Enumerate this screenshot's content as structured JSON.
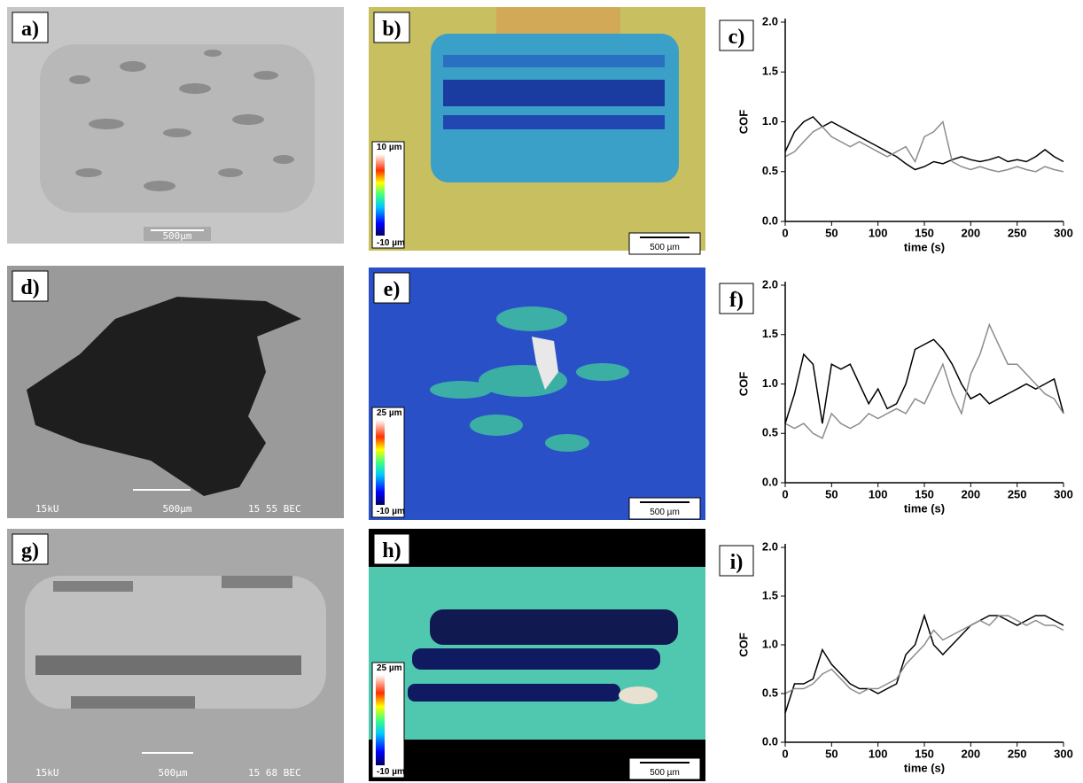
{
  "images": {
    "a": {
      "label": "a)",
      "scale_bar": "500µm"
    },
    "b": {
      "label": "b)",
      "scale_bar": "500 µm",
      "colorbar_max": "10 µm",
      "colorbar_min": "-10 µm"
    },
    "d": {
      "label": "d)",
      "scale_bar": "500µm",
      "info_left": "15kU",
      "info_right": "15 55 BEC"
    },
    "e": {
      "label": "e)",
      "scale_bar": "500 µm",
      "colorbar_max": "25 µm",
      "colorbar_min": "-10 µm"
    },
    "g": {
      "label": "g)",
      "scale_bar": "500µm",
      "info_left": "15kU",
      "info_right": "15 68 BEC"
    },
    "h": {
      "label": "h)",
      "scale_bar": "500 µm",
      "colorbar_max": "25 µm",
      "colorbar_min": "-10 µm"
    }
  },
  "chart_data": [
    {
      "type": "line",
      "label": "c)",
      "x_label": "time (s)",
      "y_label": "COF",
      "x": [
        0,
        10,
        20,
        30,
        40,
        50,
        60,
        70,
        80,
        90,
        100,
        110,
        120,
        130,
        140,
        150,
        160,
        170,
        180,
        190,
        200,
        210,
        220,
        230,
        240,
        250,
        260,
        270,
        280,
        290,
        300
      ],
      "xlim": [
        0,
        300
      ],
      "ylim": [
        0,
        2.0
      ],
      "xticks": [
        0,
        50,
        100,
        150,
        200,
        250,
        300
      ],
      "yticks": [
        {
          "value": 0,
          "label": "0.0"
        },
        {
          "value": 0.5,
          "label": "0.5"
        },
        {
          "value": 1.0,
          "label": "1.0"
        },
        {
          "value": 1.5,
          "label": "1.5"
        },
        {
          "value": 2.0,
          "label": "2.0"
        }
      ],
      "series": [
        {
          "color": "#000000",
          "values": [
            0.7,
            0.9,
            1.0,
            1.05,
            0.95,
            1.0,
            0.95,
            0.9,
            0.85,
            0.8,
            0.75,
            0.7,
            0.65,
            0.58,
            0.52,
            0.55,
            0.6,
            0.58,
            0.62,
            0.65,
            0.62,
            0.6,
            0.62,
            0.65,
            0.6,
            0.62,
            0.6,
            0.65,
            0.72,
            0.65,
            0.6
          ]
        },
        {
          "color": "#8c8c8c",
          "values": [
            0.65,
            0.7,
            0.8,
            0.9,
            0.95,
            0.85,
            0.8,
            0.75,
            0.8,
            0.75,
            0.7,
            0.65,
            0.7,
            0.75,
            0.6,
            0.85,
            0.9,
            1.0,
            0.6,
            0.55,
            0.52,
            0.55,
            0.52,
            0.5,
            0.52,
            0.55,
            0.52,
            0.5,
            0.55,
            0.52,
            0.5
          ]
        }
      ]
    },
    {
      "type": "line",
      "label": "f)",
      "x_label": "time (s)",
      "y_label": "COF",
      "x": [
        0,
        10,
        20,
        30,
        40,
        50,
        60,
        70,
        80,
        90,
        100,
        110,
        120,
        130,
        140,
        150,
        160,
        170,
        180,
        190,
        200,
        210,
        220,
        230,
        240,
        250,
        260,
        270,
        280,
        290,
        300
      ],
      "xlim": [
        0,
        300
      ],
      "ylim": [
        0,
        2.0
      ],
      "xticks": [
        0,
        50,
        100,
        150,
        200,
        250,
        300
      ],
      "yticks": [
        {
          "value": 0,
          "label": "0.0"
        },
        {
          "value": 0.5,
          "label": "0.5"
        },
        {
          "value": 1.0,
          "label": "1.0"
        },
        {
          "value": 1.5,
          "label": "1.5"
        },
        {
          "value": 2.0,
          "label": "2.0"
        }
      ],
      "series": [
        {
          "color": "#000000",
          "values": [
            0.6,
            0.9,
            1.3,
            1.2,
            0.6,
            1.2,
            1.15,
            1.2,
            1.0,
            0.8,
            0.95,
            0.75,
            0.8,
            1.0,
            1.35,
            1.4,
            1.45,
            1.35,
            1.2,
            1.0,
            0.85,
            0.9,
            0.8,
            0.85,
            0.9,
            0.95,
            1.0,
            0.95,
            1.0,
            1.05,
            0.7
          ]
        },
        {
          "color": "#8c8c8c",
          "values": [
            0.6,
            0.55,
            0.6,
            0.5,
            0.45,
            0.7,
            0.6,
            0.55,
            0.6,
            0.7,
            0.65,
            0.7,
            0.75,
            0.7,
            0.85,
            0.8,
            1.0,
            1.2,
            0.9,
            0.7,
            1.1,
            1.3,
            1.6,
            1.4,
            1.2,
            1.2,
            1.1,
            1.0,
            0.9,
            0.85,
            0.7
          ]
        }
      ]
    },
    {
      "type": "line",
      "label": "i)",
      "x_label": "time (s)",
      "y_label": "COF",
      "x": [
        0,
        10,
        20,
        30,
        40,
        50,
        60,
        70,
        80,
        90,
        100,
        110,
        120,
        130,
        140,
        150,
        160,
        170,
        180,
        190,
        200,
        210,
        220,
        230,
        240,
        250,
        260,
        270,
        280,
        290,
        300
      ],
      "xlim": [
        0,
        300
      ],
      "ylim": [
        0,
        2.0
      ],
      "xticks": [
        0,
        50,
        100,
        150,
        200,
        250,
        300
      ],
      "yticks": [
        {
          "value": 0,
          "label": "0.0"
        },
        {
          "value": 0.5,
          "label": "0.5"
        },
        {
          "value": 1.0,
          "label": "1.0"
        },
        {
          "value": 1.5,
          "label": "1.5"
        },
        {
          "value": 2.0,
          "label": "2.0"
        }
      ],
      "series": [
        {
          "color": "#000000",
          "values": [
            0.3,
            0.6,
            0.6,
            0.65,
            0.95,
            0.8,
            0.7,
            0.6,
            0.55,
            0.55,
            0.5,
            0.55,
            0.6,
            0.9,
            1.0,
            1.3,
            1.0,
            0.9,
            1.0,
            1.1,
            1.2,
            1.25,
            1.3,
            1.3,
            1.25,
            1.2,
            1.25,
            1.3,
            1.3,
            1.25,
            1.2
          ]
        },
        {
          "color": "#8c8c8c",
          "values": [
            0.5,
            0.55,
            0.55,
            0.6,
            0.7,
            0.75,
            0.65,
            0.55,
            0.5,
            0.55,
            0.55,
            0.6,
            0.65,
            0.8,
            0.9,
            1.0,
            1.15,
            1.05,
            1.1,
            1.15,
            1.2,
            1.25,
            1.2,
            1.3,
            1.3,
            1.25,
            1.2,
            1.25,
            1.2,
            1.2,
            1.15
          ]
        }
      ]
    }
  ]
}
